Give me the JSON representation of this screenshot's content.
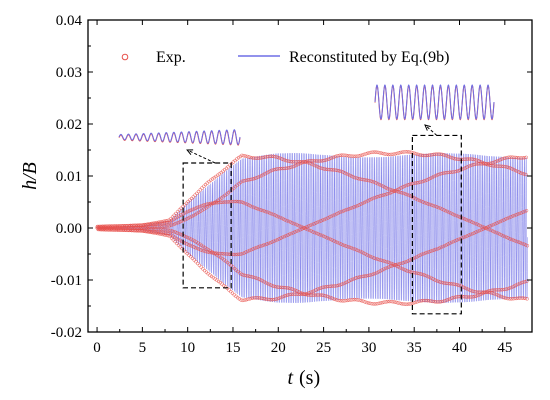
{
  "chart_data": {
    "type": "line",
    "xlabel": "t",
    "xlabel_unit": "(s)",
    "ylabel": "h/B",
    "xlim": [
      -1,
      48
    ],
    "ylim": [
      -0.02,
      0.04
    ],
    "x_ticks": [
      0,
      5,
      10,
      15,
      20,
      25,
      30,
      35,
      40,
      45
    ],
    "y_ticks": [
      -0.02,
      -0.01,
      0.0,
      0.01,
      0.02,
      0.03,
      0.04
    ],
    "x_tick_labels": [
      "0",
      "5",
      "10",
      "15",
      "20",
      "25",
      "30",
      "35",
      "40",
      "45"
    ],
    "y_tick_labels": [
      "-0.02",
      "-0.01",
      "0.00",
      "0.01",
      "0.02",
      "0.03",
      "0.04"
    ],
    "legend_position": "top",
    "series": [
      {
        "name": "Exp.",
        "marker": "open-circle",
        "color": "#e8504a",
        "envelope": [
          {
            "t": 0,
            "amp": 0.0003
          },
          {
            "t": 5,
            "amp": 0.0006
          },
          {
            "t": 8,
            "amp": 0.0015
          },
          {
            "t": 10,
            "amp": 0.005
          },
          {
            "t": 12,
            "amp": 0.008
          },
          {
            "t": 14,
            "amp": 0.011
          },
          {
            "t": 16,
            "amp": 0.0135
          },
          {
            "t": 20,
            "amp": 0.014
          },
          {
            "t": 47.5,
            "amp": 0.014
          }
        ]
      },
      {
        "name": "Reconstituted by Eq.(9b)",
        "marker": "line",
        "color": "#6f6fe6"
      }
    ],
    "zoom_boxes": [
      {
        "t_range": [
          9.5,
          14.8
        ],
        "h_range": [
          -0.0115,
          0.0125
        ]
      },
      {
        "t_range": [
          34.8,
          40.2
        ],
        "h_range": [
          -0.0165,
          0.0178
        ]
      }
    ]
  },
  "legend": {
    "exp_label": "Exp.",
    "model_label": "Reconstituted by Eq.(9b)"
  }
}
